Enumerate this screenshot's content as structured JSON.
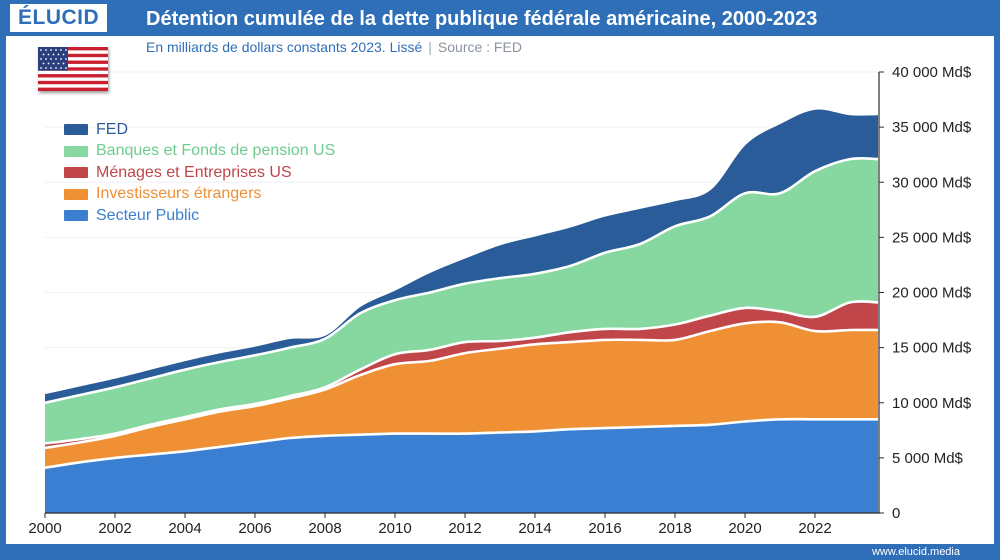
{
  "header": {
    "logo": "ÉLUCID",
    "title": "Détention cumulée de la dette publique fédérale américaine, 2000-2023",
    "subtitle": "En milliards de dollars constants 2023. Lissé",
    "source": "Source : FED"
  },
  "footer": {
    "site": "www.elucid.media"
  },
  "colors": {
    "frame": "#2f6fb8",
    "secteur_public": "#3a7fd1",
    "investisseurs_etrangers": "#f09035",
    "menages": "#c0464a",
    "banques": "#86d8a0",
    "fed": "#2a5c9a"
  },
  "icons": {
    "flag": "us-flag-icon"
  },
  "chart_data": {
    "type": "area",
    "stacked": true,
    "title": "Détention cumulée de la dette publique fédérale américaine, 2000-2023",
    "unit": "Md$",
    "x": [
      2000,
      2001,
      2002,
      2003,
      2004,
      2005,
      2006,
      2007,
      2008,
      2009,
      2010,
      2011,
      2012,
      2013,
      2014,
      2015,
      2016,
      2017,
      2018,
      2019,
      2020,
      2021,
      2022,
      2023
    ],
    "xlim": [
      2000,
      2023.8
    ],
    "xticks": [
      2000,
      2002,
      2004,
      2006,
      2008,
      2010,
      2012,
      2014,
      2016,
      2018,
      2020,
      2022
    ],
    "ylim": [
      0,
      40000
    ],
    "yticks": [
      0,
      5000,
      10000,
      15000,
      20000,
      25000,
      30000,
      35000,
      40000
    ],
    "ytick_labels": [
      "0",
      "5 000 Md$",
      "10 000 Md$",
      "15 000 Md$",
      "20 000 Md$",
      "25 000 Md$",
      "30 000 Md$",
      "35 000 Md$",
      "40 000 Md$"
    ],
    "legend_position": "top-left",
    "series": [
      {
        "key": "secteur_public",
        "name": "Secteur Public",
        "values": [
          4100,
          4600,
          5000,
          5300,
          5600,
          6000,
          6400,
          6800,
          7000,
          7100,
          7200,
          7200,
          7200,
          7300,
          7400,
          7600,
          7700,
          7800,
          7900,
          8000,
          8300,
          8500,
          8500,
          8500
        ]
      },
      {
        "key": "investisseurs_etrangers",
        "name": "Investisseurs étrangers",
        "values": [
          1800,
          1800,
          2000,
          2500,
          2900,
          3200,
          3300,
          3600,
          4200,
          5400,
          6300,
          6600,
          7300,
          7600,
          7900,
          7900,
          8000,
          7900,
          7800,
          8500,
          8900,
          8800,
          8000,
          8100
        ]
      },
      {
        "key": "menages",
        "name": "Ménages et Entreprises US",
        "values": [
          400,
          300,
          200,
          200,
          200,
          200,
          200,
          200,
          200,
          500,
          900,
          1000,
          1000,
          700,
          600,
          900,
          1000,
          1000,
          1400,
          1400,
          1400,
          1000,
          1300,
          2500
        ]
      },
      {
        "key": "banques",
        "name": "Banques et Fonds de pension US",
        "values": [
          3700,
          4000,
          4200,
          4200,
          4300,
          4300,
          4400,
          4400,
          4400,
          5100,
          4900,
          5200,
          5300,
          5700,
          5800,
          6000,
          6900,
          7700,
          8900,
          9000,
          10400,
          10700,
          13200,
          13000
        ]
      },
      {
        "key": "fed",
        "name": "FED",
        "values": [
          900,
          900,
          900,
          900,
          900,
          900,
          900,
          900,
          400,
          700,
          1000,
          1900,
          2400,
          3100,
          3500,
          3600,
          3400,
          3300,
          2400,
          2500,
          4500,
          6400,
          5700,
          4100
        ]
      }
    ]
  }
}
